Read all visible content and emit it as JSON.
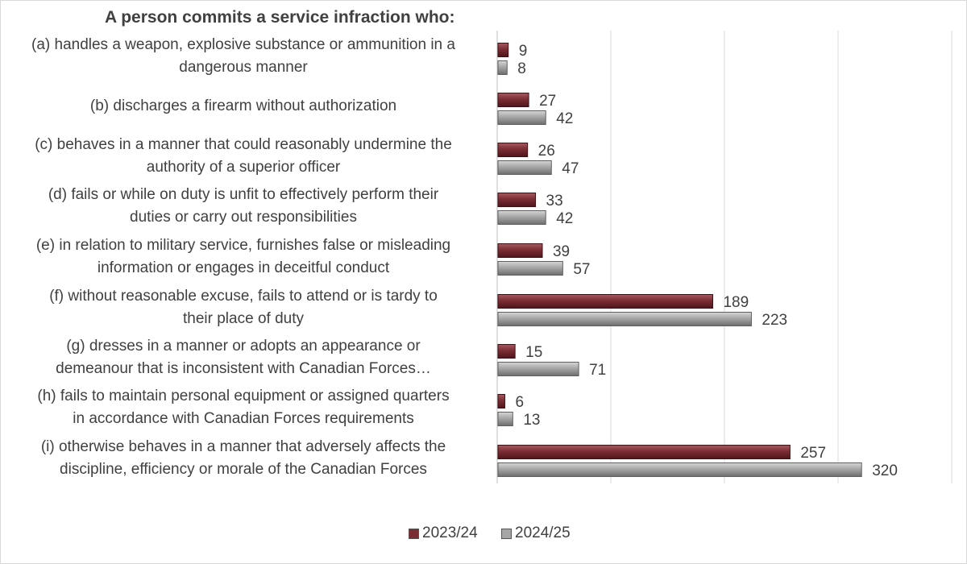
{
  "chart_data": {
    "type": "bar",
    "orientation": "horizontal",
    "title": "A person commits a service infraction who:",
    "categories": [
      [
        "(a) handles a weapon, explosive substance or ammunition in a",
        "dangerous manner"
      ],
      [
        "(b) discharges a firearm without authorization"
      ],
      [
        "(c) behaves in a manner that could reasonably undermine the",
        "authority of a superior officer"
      ],
      [
        "(d) fails or while on duty is unfit to effectively perform their",
        "duties or carry out responsibilities"
      ],
      [
        "(e) in relation to military service, furnishes false or misleading",
        "information or engages in deceitful conduct"
      ],
      [
        "(f) without reasonable excuse, fails to attend or is tardy to",
        "their place of duty"
      ],
      [
        "(g) dresses in a manner or adopts an appearance or",
        "demeanour that is inconsistent with Canadian Forces…"
      ],
      [
        "(h) fails to maintain personal equipment or assigned quarters",
        "in accordance with Canadian Forces requirements"
      ],
      [
        "(i) otherwise behaves in a manner that adversely affects the",
        "discipline, efficiency or morale of the Canadian Forces"
      ]
    ],
    "series": [
      {
        "name": "2023/24",
        "color": "#7b2d34",
        "values": [
          9,
          27,
          26,
          33,
          39,
          189,
          15,
          6,
          257
        ]
      },
      {
        "name": "2024/25",
        "color": "#a6a6a6",
        "values": [
          8,
          42,
          47,
          42,
          57,
          223,
          71,
          13,
          320
        ]
      }
    ],
    "xlim": [
      0,
      400
    ],
    "grid": true,
    "legend": "bottom-center"
  }
}
